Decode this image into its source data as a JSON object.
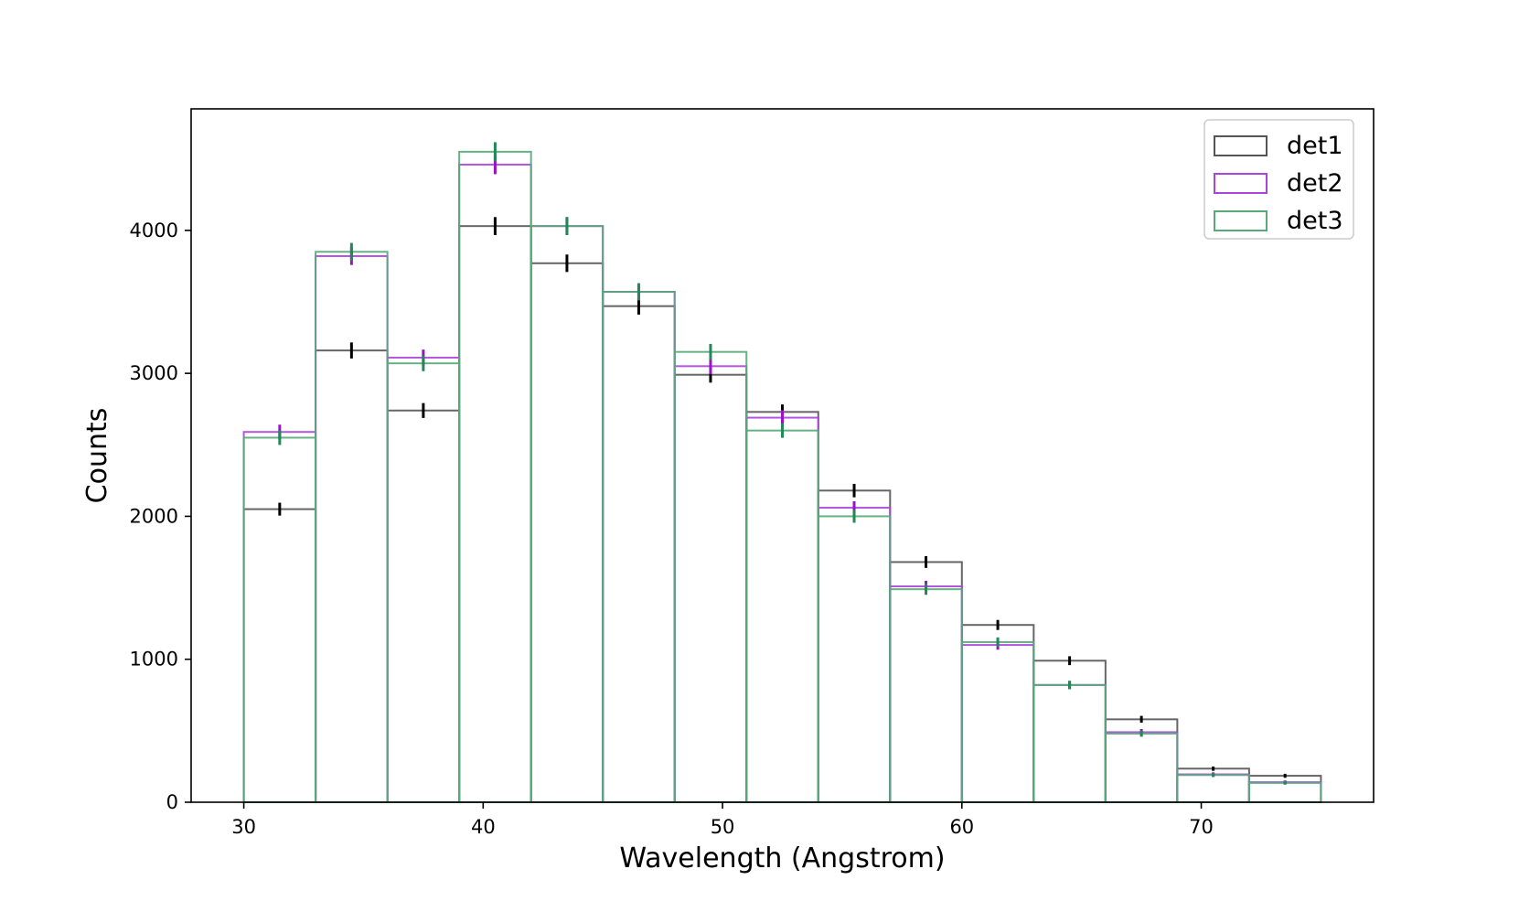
{
  "chart_data": {
    "type": "histogram",
    "title": "",
    "xlabel": "Wavelength (Angstrom)",
    "ylabel": "Counts",
    "xlim": [
      27.8,
      77.2
    ],
    "ylim": [
      0,
      4850
    ],
    "xticks": [
      30,
      40,
      50,
      60,
      70
    ],
    "yticks": [
      0,
      1000,
      2000,
      3000,
      4000
    ],
    "bin_edges": [
      30,
      33,
      36,
      39,
      42,
      45,
      48,
      51,
      54,
      57,
      60,
      63,
      66,
      69,
      72,
      75
    ],
    "legend_position": "top-right",
    "series": [
      {
        "name": "det1",
        "color": "#555555",
        "errcolor": "#000000",
        "values": [
          2050,
          3160,
          2740,
          4030,
          3770,
          3470,
          2990,
          2730,
          2180,
          1680,
          1240,
          990,
          580,
          235,
          185
        ],
        "errors": [
          45,
          56,
          52,
          63,
          61,
          59,
          55,
          52,
          47,
          41,
          35,
          31,
          24,
          15,
          14
        ]
      },
      {
        "name": "det2",
        "color": "#aa44dd",
        "errcolor": "#9911cc",
        "values": [
          2590,
          3820,
          3110,
          4460,
          4030,
          3570,
          3050,
          2690,
          2060,
          1510,
          1100,
          820,
          490,
          195,
          140
        ],
        "errors": [
          51,
          62,
          56,
          67,
          63,
          60,
          55,
          52,
          45,
          39,
          33,
          29,
          22,
          14,
          12
        ]
      },
      {
        "name": "det3",
        "color": "#55aa77",
        "errcolor": "#228855",
        "values": [
          2550,
          3850,
          3070,
          4550,
          4030,
          3570,
          3150,
          2600,
          2000,
          1490,
          1120,
          820,
          480,
          190,
          135
        ],
        "errors": [
          51,
          62,
          55,
          67,
          63,
          60,
          56,
          51,
          45,
          39,
          33,
          29,
          22,
          14,
          12
        ]
      }
    ]
  }
}
